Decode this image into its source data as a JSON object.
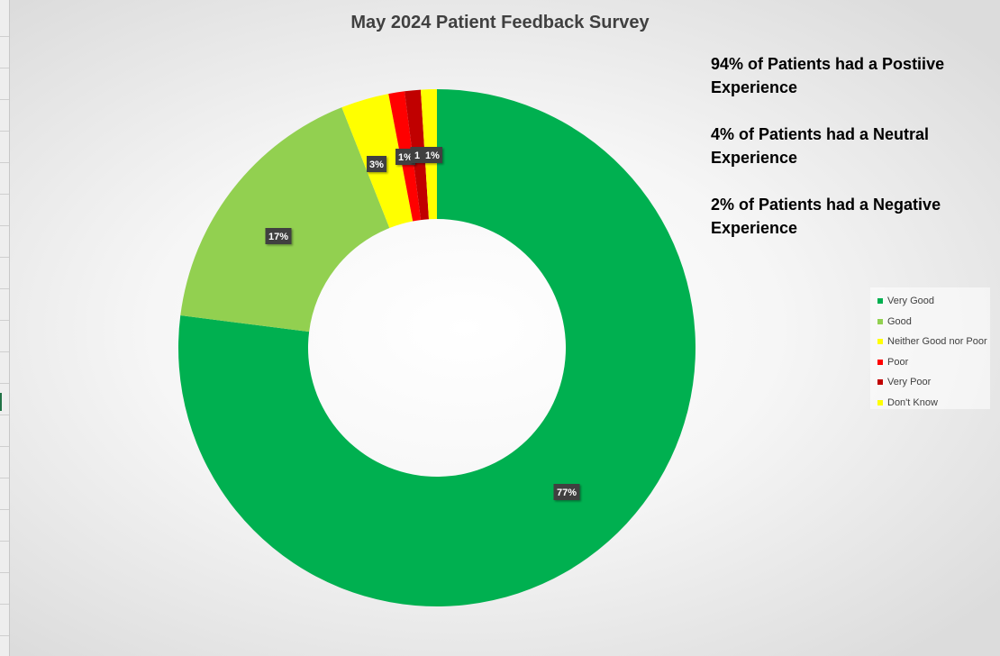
{
  "chart_data": {
    "type": "pie",
    "subtype": "donut",
    "title": "May 2024 Patient Feedback Survey",
    "categories": [
      "Very Good",
      "Good",
      "Neither Good nor Poor",
      "Poor",
      "Very Poor",
      "Don't Know"
    ],
    "values": [
      77,
      17,
      3,
      1,
      1,
      1
    ],
    "data_labels": [
      "77%",
      "17%",
      "3%",
      "1%",
      "1",
      "1%"
    ],
    "colors": [
      "#00b050",
      "#92d050",
      "#ffff00",
      "#ff0000",
      "#c00000",
      "#ffff00"
    ],
    "legend_position": "right"
  },
  "annotations": [
    "94% of Patients had a Postiive Experience",
    "4% of Patients had a Neutral Experience",
    "2% of Patients had a Negative Experience"
  ]
}
